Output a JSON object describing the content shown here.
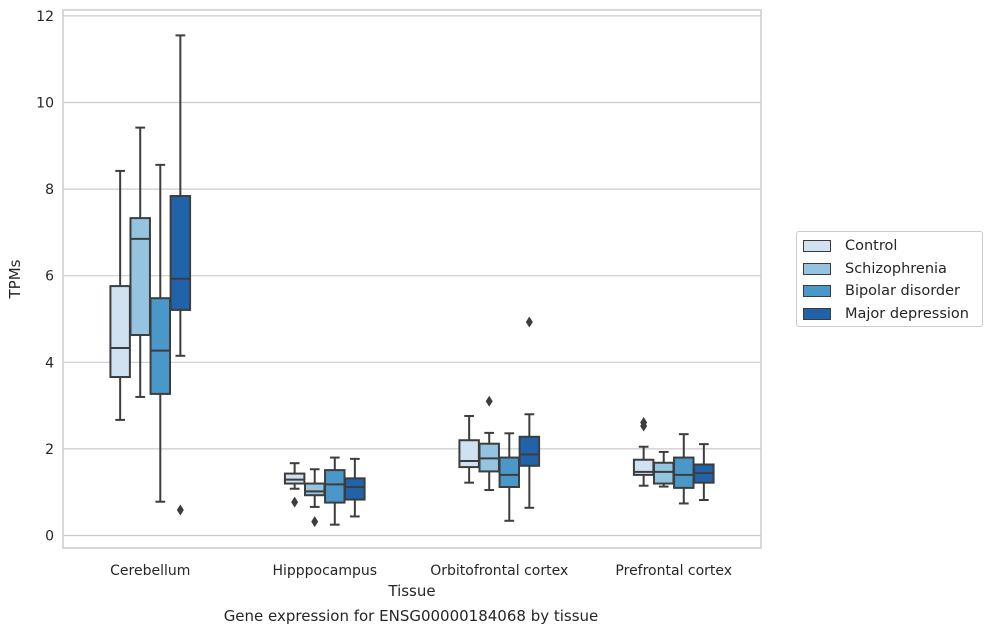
{
  "chart_data": {
    "type": "box",
    "title": "",
    "caption": "Gene expression for ENSG00000184068 by tissue",
    "xlabel": "Tissue",
    "ylabel": "TPMs",
    "ylim": [
      -0.3,
      12.2
    ],
    "yticks": [
      0,
      2,
      4,
      6,
      8,
      10,
      12
    ],
    "grid": "horizontal",
    "legend_position": "right",
    "categories": [
      "Cerebellum",
      "Hipppocampus",
      "Orbitofrontal cortex",
      "Prefrontal cortex"
    ],
    "series": [
      {
        "name": "Control",
        "color": "#d0e1f2",
        "boxes": [
          {
            "whislo": 2.67,
            "q1": 3.66,
            "med": 4.33,
            "q3": 5.76,
            "whishi": 8.42,
            "fliers": []
          },
          {
            "whislo": 1.08,
            "q1": 1.2,
            "med": 1.29,
            "q3": 1.43,
            "whishi": 1.67,
            "fliers": [
              0.77
            ]
          },
          {
            "whislo": 1.22,
            "q1": 1.58,
            "med": 1.72,
            "q3": 2.2,
            "whishi": 2.76,
            "fliers": []
          },
          {
            "whislo": 1.15,
            "q1": 1.4,
            "med": 1.47,
            "q3": 1.75,
            "whishi": 2.05,
            "fliers": [
              2.53,
              2.61
            ]
          }
        ]
      },
      {
        "name": "Schizophrenia",
        "color": "#94c4df",
        "boxes": [
          {
            "whislo": 3.2,
            "q1": 4.63,
            "med": 6.85,
            "q3": 7.33,
            "whishi": 9.42,
            "fliers": []
          },
          {
            "whislo": 0.66,
            "q1": 0.93,
            "med": 1.02,
            "q3": 1.2,
            "whishi": 1.53,
            "fliers": [
              0.32
            ]
          },
          {
            "whislo": 1.05,
            "q1": 1.48,
            "med": 1.78,
            "q3": 2.12,
            "whishi": 2.37,
            "fliers": [
              3.1
            ]
          },
          {
            "whislo": 1.13,
            "q1": 1.2,
            "med": 1.47,
            "q3": 1.68,
            "whishi": 1.93,
            "fliers": []
          }
        ]
      },
      {
        "name": "Bipolar disorder",
        "color": "#4a98c9",
        "boxes": [
          {
            "whislo": 0.78,
            "q1": 3.27,
            "med": 4.27,
            "q3": 5.48,
            "whishi": 8.56,
            "fliers": []
          },
          {
            "whislo": 0.25,
            "q1": 0.76,
            "med": 1.18,
            "q3": 1.51,
            "whishi": 1.8,
            "fliers": []
          },
          {
            "whislo": 0.34,
            "q1": 1.12,
            "med": 1.4,
            "q3": 1.8,
            "whishi": 2.36,
            "fliers": []
          },
          {
            "whislo": 0.74,
            "q1": 1.1,
            "med": 1.4,
            "q3": 1.8,
            "whishi": 2.34,
            "fliers": []
          }
        ]
      },
      {
        "name": "Major depression",
        "color": "#2163aa",
        "boxes": [
          {
            "whislo": 4.15,
            "q1": 5.21,
            "med": 5.93,
            "q3": 7.84,
            "whishi": 11.55,
            "fliers": [
              0.59
            ]
          },
          {
            "whislo": 0.44,
            "q1": 0.83,
            "med": 1.12,
            "q3": 1.32,
            "whishi": 1.77,
            "fliers": []
          },
          {
            "whislo": 0.64,
            "q1": 1.61,
            "med": 1.87,
            "q3": 2.28,
            "whishi": 2.8,
            "fliers": [
              4.93
            ]
          },
          {
            "whislo": 0.82,
            "q1": 1.22,
            "med": 1.44,
            "q3": 1.64,
            "whishi": 2.11,
            "fliers": []
          }
        ]
      }
    ]
  }
}
